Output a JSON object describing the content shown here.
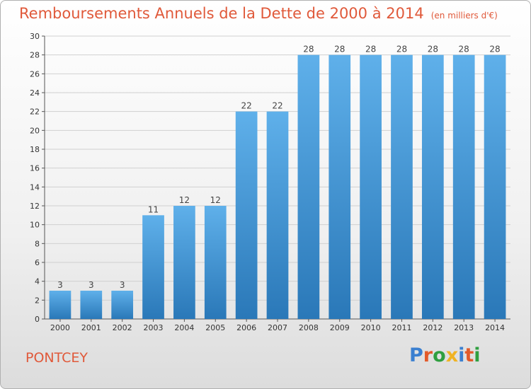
{
  "title": "Remboursements Annuels de la Dette de 2000 à 2014",
  "subtitle": "(en milliers d'€)",
  "commune": "PONTCEY",
  "logo": {
    "text": "Proxiti",
    "letters": [
      {
        "ch": "P",
        "color": "#3a7fd0"
      },
      {
        "ch": "r",
        "color": "#e25a2a"
      },
      {
        "ch": "o",
        "color": "#2f9f3f"
      },
      {
        "ch": "x",
        "color": "#f0b323"
      },
      {
        "ch": "i",
        "color": "#3a7fd0"
      },
      {
        "ch": "t",
        "color": "#e25a2a"
      },
      {
        "ch": "i",
        "color": "#2f9f3f"
      }
    ]
  },
  "colors": {
    "title": "#e0593a",
    "bar_light": "#5fb0ea",
    "bar_dark": "#2a78b8",
    "grid": "#d0d0d0"
  },
  "chart_data": {
    "type": "bar",
    "categories": [
      "2000",
      "2001",
      "2002",
      "2003",
      "2004",
      "2005",
      "2006",
      "2007",
      "2008",
      "2009",
      "2010",
      "2011",
      "2012",
      "2013",
      "2014"
    ],
    "values": [
      3,
      3,
      3,
      11,
      12,
      12,
      22,
      22,
      28,
      28,
      28,
      28,
      28,
      28,
      28
    ],
    "ylim": [
      0,
      30
    ],
    "yticks": [
      0,
      2,
      4,
      6,
      8,
      10,
      12,
      14,
      16,
      18,
      20,
      22,
      24,
      26,
      28,
      30
    ],
    "grid": true
  }
}
